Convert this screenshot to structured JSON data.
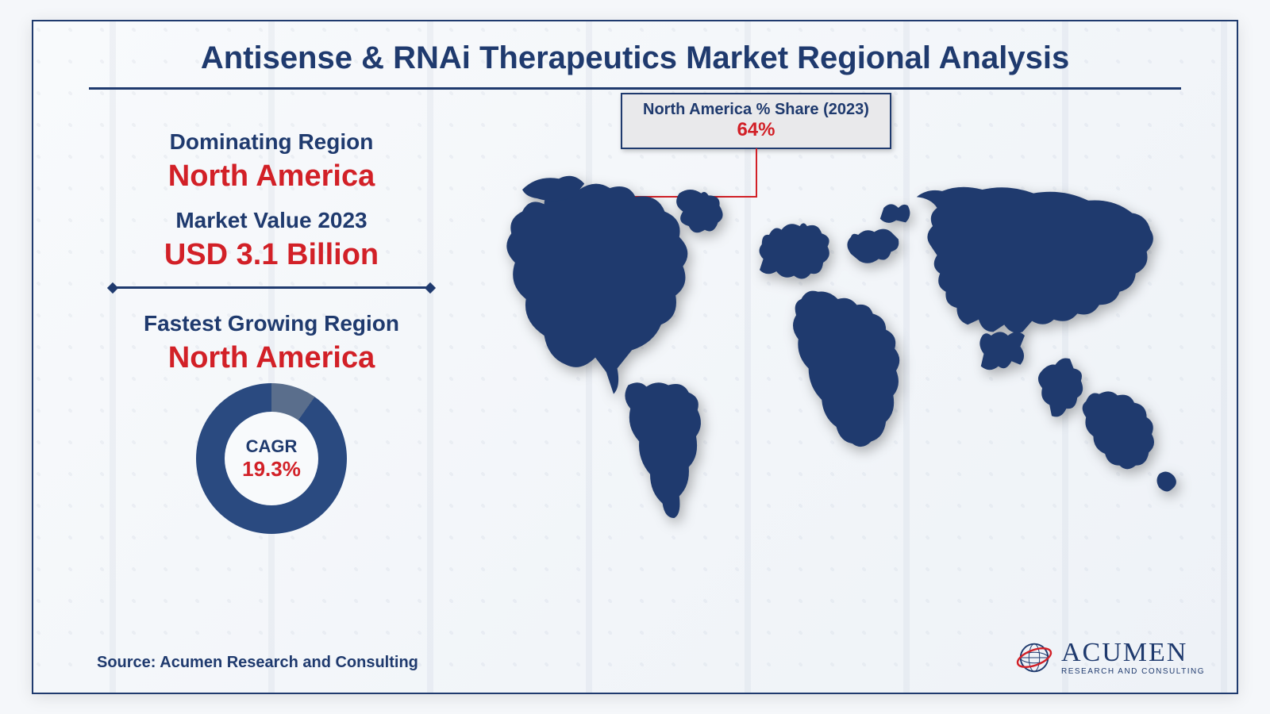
{
  "title": "Antisense & RNAi Therapeutics Market Regional Analysis",
  "colors": {
    "navy": "#1f3a6e",
    "red": "#d22027",
    "callout_bg": "#e9e9eb",
    "callout_border": "#1f3a6e",
    "map_fill": "#1f3a6e",
    "donut_main": "#2a4a80",
    "donut_track": "#5a6e8c",
    "divider": "#1f3a6e"
  },
  "left_panel": {
    "dominating_label": "Dominating Region",
    "dominating_value": "North America",
    "market_label": "Market Value 2023",
    "market_value": "USD 3.1 Billion",
    "fastest_label": "Fastest Growing Region",
    "fastest_value": "North America"
  },
  "donut": {
    "label": "CAGR",
    "value_text": "19.3%",
    "percent_filled": 93,
    "gap_start_deg": 10,
    "gap_end_deg": 35
  },
  "callout": {
    "label": "North America % Share (2023)",
    "value": "64%"
  },
  "source": "Source: Acumen Research and Consulting",
  "logo": {
    "name": "ACUMEN",
    "sub": "RESEARCH AND CONSULTING",
    "globe_color": "#1f3a6e",
    "ring_color": "#d22027"
  },
  "typography": {
    "title_size": 40,
    "label_size": 28,
    "value_size": 38
  }
}
